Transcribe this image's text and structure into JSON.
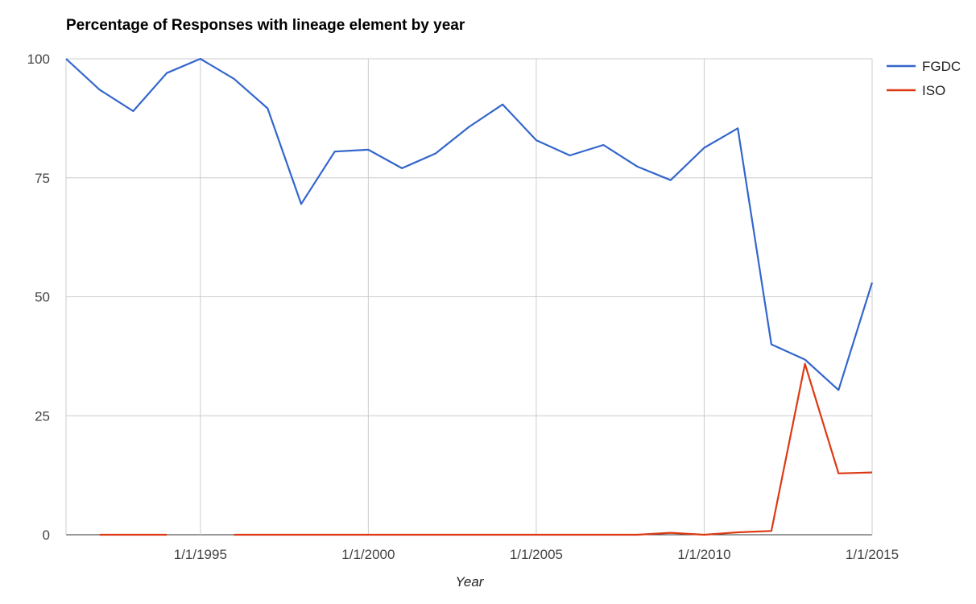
{
  "chart_data": {
    "type": "line",
    "title": "Percentage of Responses with lineage element by year",
    "xlabel": "Year",
    "ylabel": "",
    "x_range": [
      1991,
      2015
    ],
    "ylim": [
      0,
      100
    ],
    "y_ticks": [
      0,
      25,
      50,
      75,
      100
    ],
    "x_ticks": [
      {
        "year": 1995,
        "label": "1/1/1995"
      },
      {
        "year": 2000,
        "label": "1/1/2000"
      },
      {
        "year": 2005,
        "label": "1/1/2005"
      },
      {
        "year": 2010,
        "label": "1/1/2010"
      },
      {
        "year": 2015,
        "label": "1/1/2015"
      }
    ],
    "grid": true,
    "legend_position": "right",
    "series": [
      {
        "name": "FGDC",
        "color": "#3366cc",
        "segments": [
          [
            [
              1991,
              100
            ],
            [
              1992,
              93.5
            ],
            [
              1993,
              89
            ],
            [
              1994,
              97
            ],
            [
              1995,
              100
            ],
            [
              1996,
              95.8
            ],
            [
              1997,
              89.6
            ],
            [
              1998,
              69.5
            ],
            [
              1999,
              80.5
            ],
            [
              2000,
              80.9
            ],
            [
              2001,
              77
            ],
            [
              2002,
              80.1
            ],
            [
              2003,
              85.7
            ],
            [
              2004,
              90.4
            ],
            [
              2005,
              82.9
            ],
            [
              2006,
              79.7
            ],
            [
              2007,
              81.9
            ],
            [
              2008,
              77.4
            ],
            [
              2009,
              74.5
            ],
            [
              2010,
              81.3
            ],
            [
              2011,
              85.4
            ],
            [
              2012,
              40
            ],
            [
              2013,
              36.8
            ],
            [
              2014,
              30.4
            ],
            [
              2015,
              53
            ]
          ]
        ]
      },
      {
        "name": "ISO",
        "color": "#dc3912",
        "segments": [
          [
            [
              1992,
              0
            ],
            [
              1993,
              0
            ],
            [
              1994,
              0
            ]
          ],
          [
            [
              1996,
              0
            ],
            [
              1997,
              0
            ],
            [
              1998,
              0
            ],
            [
              1999,
              0
            ],
            [
              2000,
              0
            ],
            [
              2001,
              0
            ],
            [
              2002,
              0
            ],
            [
              2003,
              0
            ],
            [
              2004,
              0
            ],
            [
              2005,
              0
            ],
            [
              2006,
              0
            ],
            [
              2007,
              0
            ],
            [
              2008,
              0
            ],
            [
              2009,
              0.4
            ],
            [
              2010,
              0
            ],
            [
              2011,
              0.5
            ],
            [
              2012,
              0.8
            ],
            [
              2013,
              35.9
            ],
            [
              2014,
              12.9
            ],
            [
              2015,
              13.1
            ]
          ]
        ]
      }
    ]
  }
}
